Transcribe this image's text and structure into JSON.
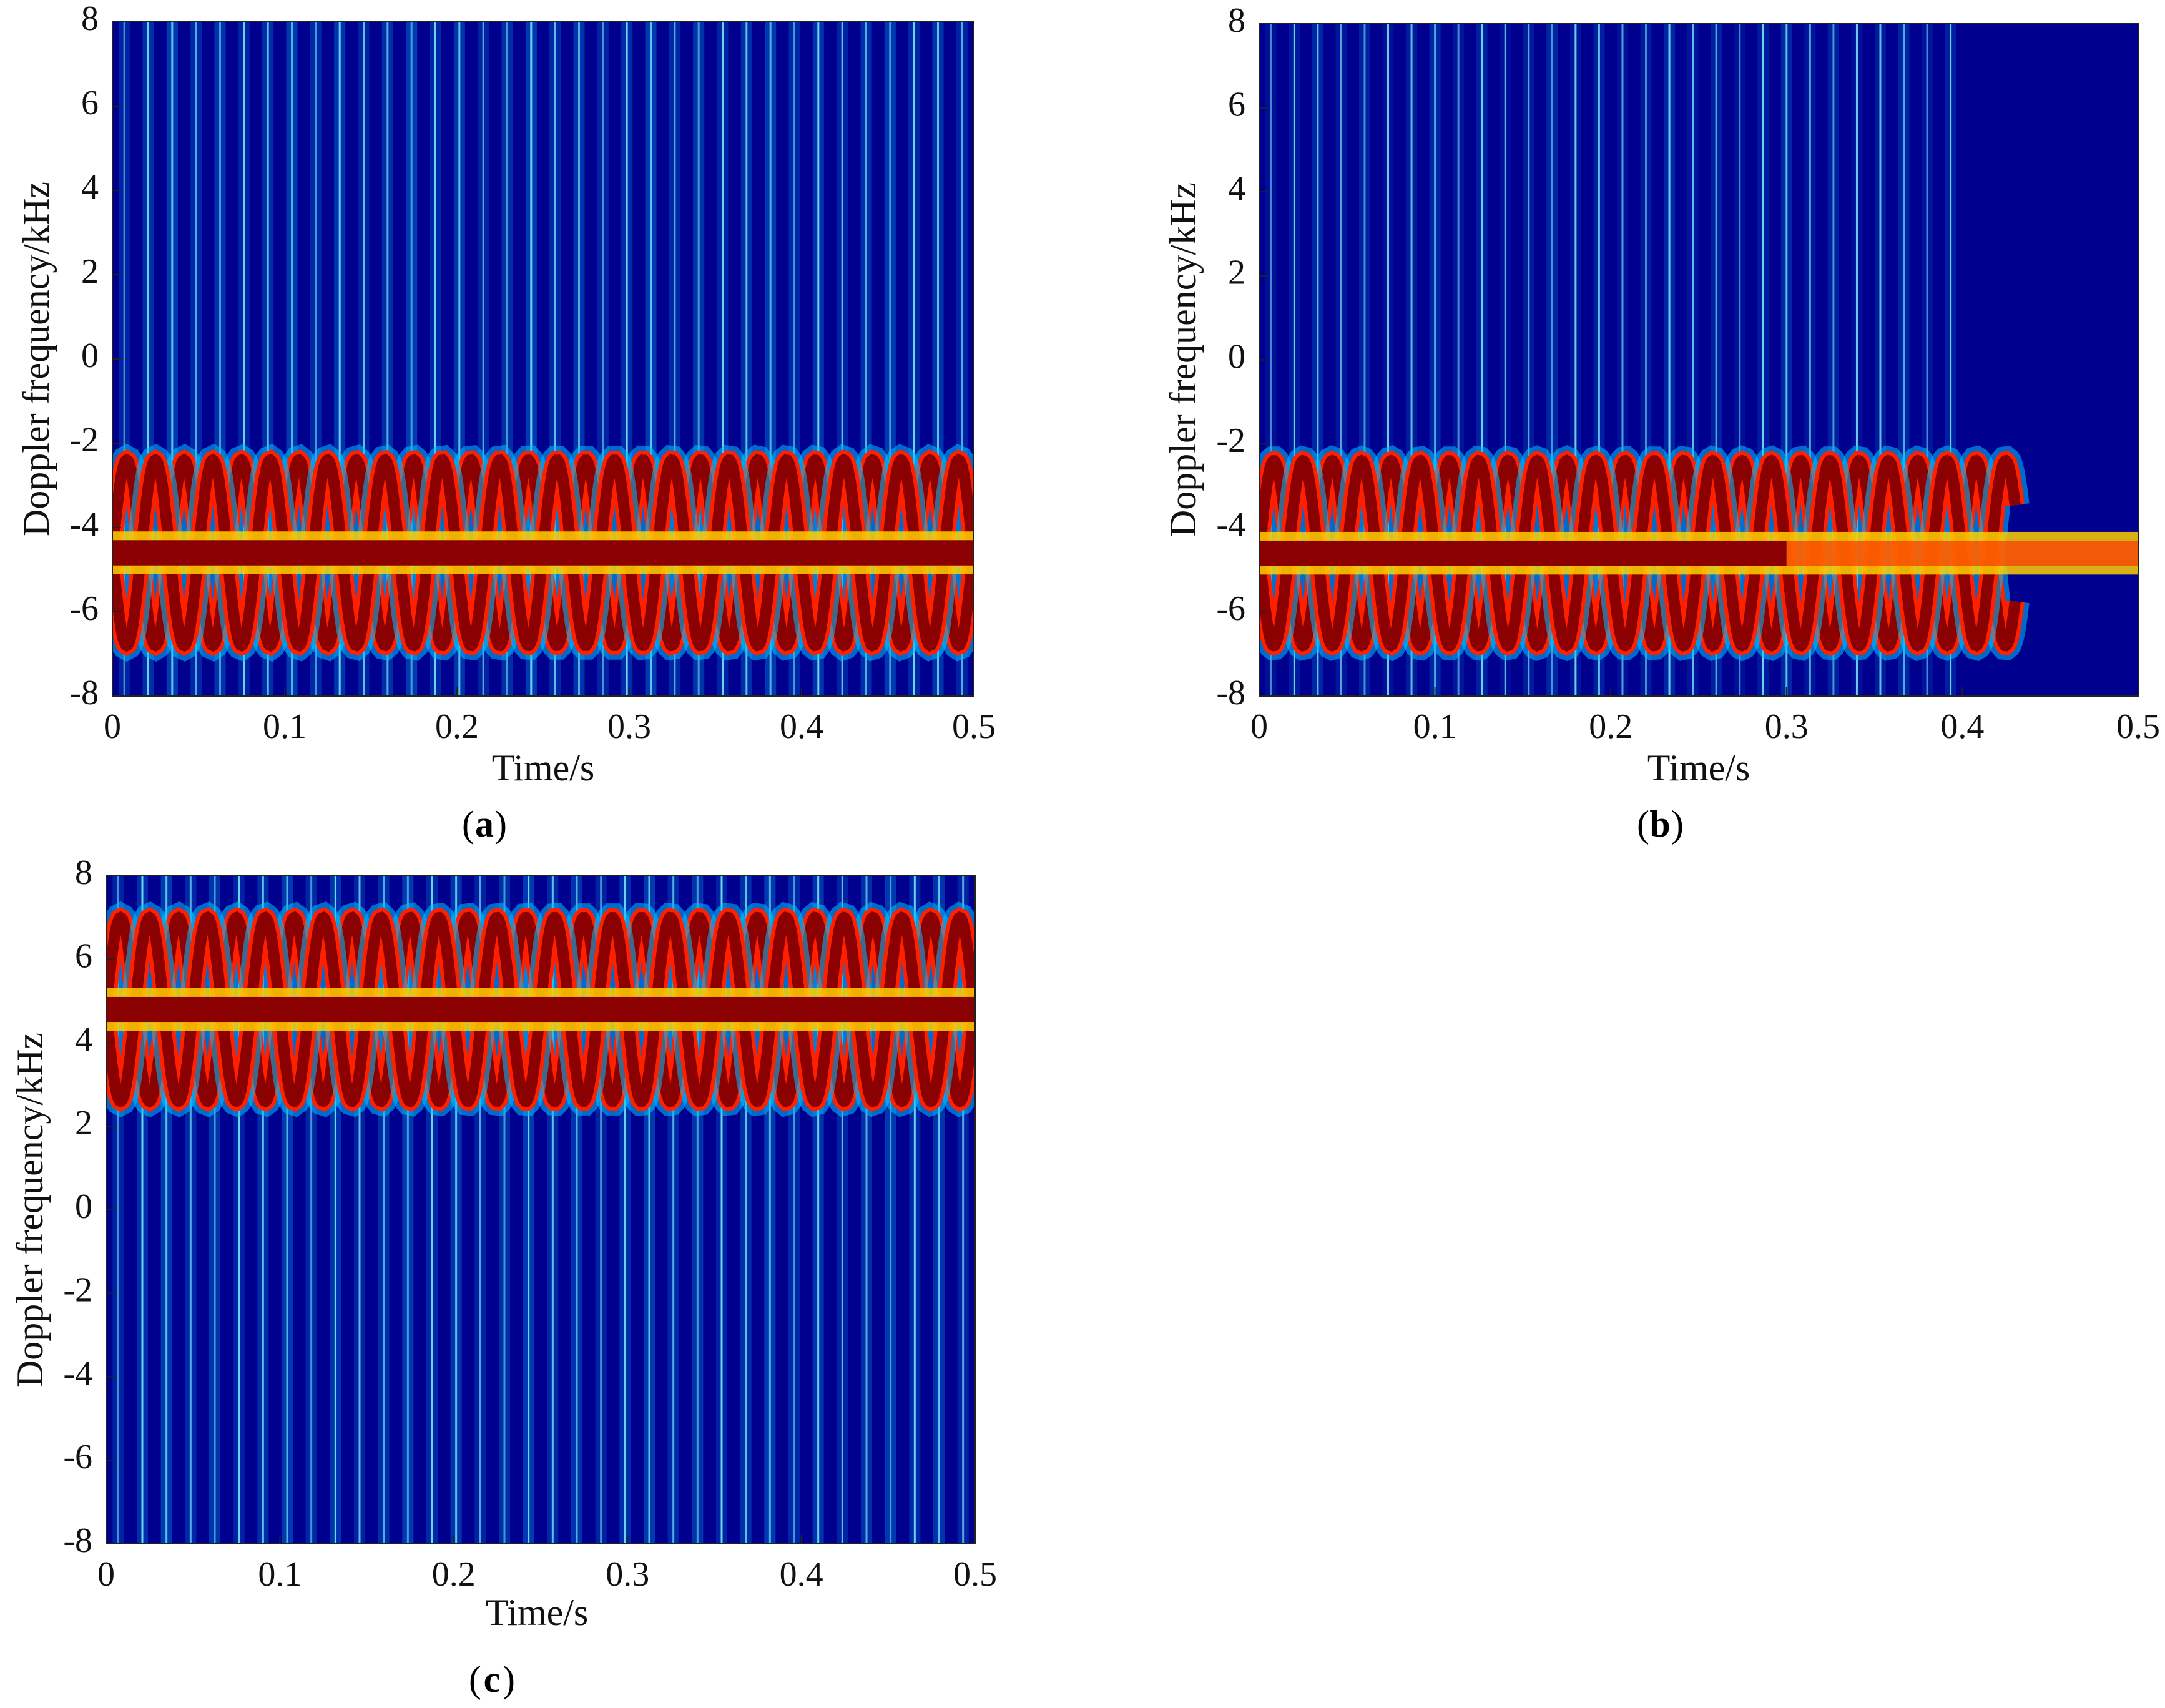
{
  "chart_data": [
    {
      "type": "heatmap",
      "panel_label": "a",
      "title": "",
      "xlabel": "Time/s",
      "ylabel": "Doppler frequency/kHz",
      "xlim": [
        0,
        0.5
      ],
      "ylim": [
        -8,
        8
      ],
      "xticks": [
        "0",
        "0.1",
        "0.2",
        "0.3",
        "0.4",
        "0.5"
      ],
      "yticks": [
        "8",
        "6",
        "4",
        "2",
        "0",
        "-2",
        "-4",
        "-6",
        "-8"
      ],
      "colormap": "jet",
      "center_freq_khz": -4.6,
      "center_band_width_khz": 0.6,
      "micro_doppler_amplitude_khz": 2.2,
      "micro_doppler_period_s": 0.0333,
      "micro_doppler_active_until_s": 0.5,
      "flash_count": 36,
      "background_intensity": 0.18,
      "colors": {
        "low": "#00008f",
        "mid": "#00bfff",
        "high": "#ff2000",
        "peak": "#8b0000"
      }
    },
    {
      "type": "heatmap",
      "panel_label": "b",
      "title": "",
      "xlabel": "Time/s",
      "ylabel": "Doppler frequency/kHz",
      "xlim": [
        0,
        0.5
      ],
      "ylim": [
        -8,
        8
      ],
      "xticks": [
        "0",
        "0.1",
        "0.2",
        "0.3",
        "0.4",
        "0.5"
      ],
      "yticks": [
        "8",
        "6",
        "4",
        "2",
        "0",
        "-2",
        "-4",
        "-6",
        "-8"
      ],
      "colormap": "jet",
      "center_freq_khz": -4.6,
      "center_band_width_khz": 0.6,
      "micro_doppler_amplitude_khz": 2.2,
      "micro_doppler_period_s": 0.0333,
      "micro_doppler_active_until_s": 0.43,
      "signal_fade_start_s": 0.3,
      "gap_interval_s": [
        0.437,
        0.46
      ],
      "flash_count": 30,
      "flash_active_until_s": 0.4,
      "background_intensity": 0.08,
      "colors": {
        "low": "#00008f",
        "mid": "#00bfff",
        "high": "#ff2000",
        "peak": "#8b0000"
      }
    },
    {
      "type": "heatmap",
      "panel_label": "c",
      "title": "",
      "xlabel": "Time/s",
      "ylabel": "Doppler frequency/kHz",
      "xlim": [
        0,
        0.5
      ],
      "ylim": [
        -8,
        8
      ],
      "xticks": [
        "0",
        "0.1",
        "0.2",
        "0.3",
        "0.4",
        "0.5"
      ],
      "yticks": [
        "8",
        "6",
        "4",
        "2",
        "0",
        "-2",
        "-4",
        "-6",
        "-8"
      ],
      "colormap": "jet",
      "center_freq_khz": 4.8,
      "center_band_width_khz": 0.6,
      "micro_doppler_amplitude_khz": 2.2,
      "micro_doppler_period_s": 0.0333,
      "micro_doppler_active_until_s": 0.5,
      "flash_count": 36,
      "background_intensity": 0.18,
      "colors": {
        "low": "#00008f",
        "mid": "#00bfff",
        "high": "#ff2000",
        "peak": "#8b0000"
      }
    }
  ]
}
